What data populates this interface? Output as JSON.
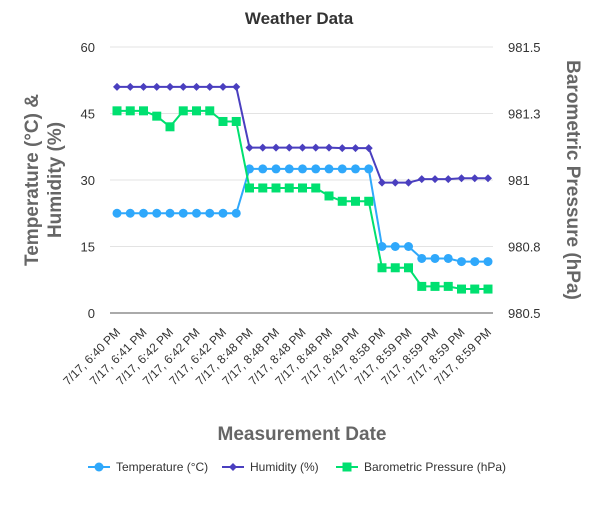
{
  "chart_data": {
    "type": "line",
    "title": "Weather Data",
    "xlabel": "Measurement Date",
    "ylabel_left": "Temperature (°C) & Humidity (%)",
    "ylabel_left_lines": [
      "Temperature (°C) &",
      "Humidity (%)"
    ],
    "ylabel_right": "Barometric Pressure (hPa)",
    "ylim_left": [
      0,
      60
    ],
    "ylim_right": [
      980.5,
      981.5
    ],
    "left_ticks": [
      "0",
      "15",
      "30",
      "45",
      "60"
    ],
    "right_ticks": [
      "980.5",
      "980.8",
      "981",
      "981.3",
      "981.5"
    ],
    "grid": true,
    "legend_position": "bottom",
    "x_tick_labels": [
      "7/17, 6:40 PM",
      "7/17, 6:41 PM",
      "7/17, 6:42 PM",
      "7/17, 6:42 PM",
      "7/17, 6:42 PM",
      "7/17, 8:48 PM",
      "7/17, 8:48 PM",
      "7/17, 8:48 PM",
      "7/17, 8:48 PM",
      "7/17, 8:49 PM",
      "7/17, 8:58 PM",
      "7/17, 8:59 PM",
      "7/17, 8:59 PM",
      "7/17, 8:59 PM",
      "7/17, 8:59 PM"
    ],
    "point_count": 29,
    "series": [
      {
        "name": "Temperature (°C)",
        "axis": "left",
        "color": "#2fa8fb",
        "marker": "circle",
        "values": [
          22.5,
          22.5,
          22.5,
          22.5,
          22.5,
          22.5,
          22.5,
          22.5,
          22.5,
          22.5,
          32.5,
          32.5,
          32.5,
          32.5,
          32.5,
          32.5,
          32.5,
          32.5,
          32.5,
          32.5,
          15,
          15,
          15,
          12.3,
          12.3,
          12.3,
          11.6,
          11.6,
          11.6
        ]
      },
      {
        "name": "Humidity (%)",
        "axis": "left",
        "color": "#4a3fbf",
        "marker": "diamond",
        "values": [
          51,
          51,
          51,
          51,
          51,
          51,
          51,
          51,
          51,
          51,
          37.3,
          37.3,
          37.3,
          37.3,
          37.3,
          37.3,
          37.3,
          37.2,
          37.2,
          37.2,
          29.4,
          29.4,
          29.4,
          30.2,
          30.2,
          30.2,
          30.4,
          30.4,
          30.4
        ]
      },
      {
        "name": "Barometric Pressure (hPa)",
        "axis": "right",
        "color": "#00e070",
        "marker": "square",
        "values": [
          981.26,
          981.26,
          981.26,
          981.24,
          981.2,
          981.26,
          981.26,
          981.26,
          981.22,
          981.22,
          980.97,
          980.97,
          980.97,
          980.97,
          980.97,
          980.97,
          980.94,
          980.92,
          980.92,
          980.92,
          980.67,
          980.67,
          980.67,
          980.6,
          980.6,
          980.6,
          980.59,
          980.59,
          980.59
        ]
      }
    ]
  }
}
